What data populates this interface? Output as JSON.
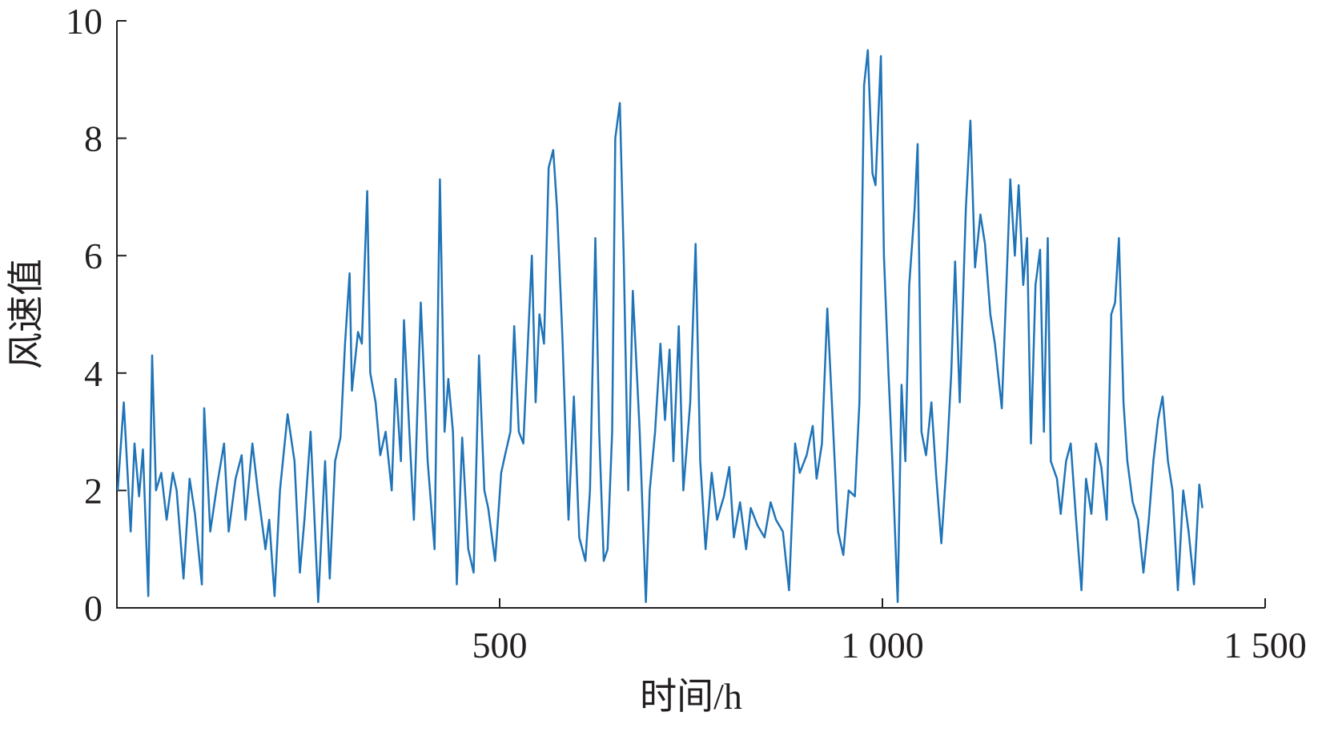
{
  "chart_data": {
    "type": "line",
    "xlabel": "时间/h",
    "ylabel": "风速值",
    "xlim": [
      0,
      1500
    ],
    "ylim": [
      0,
      10
    ],
    "xticks": [
      500,
      {
        "value": 1000,
        "label": "1 000"
      },
      {
        "value": 1500,
        "label": "1 500"
      }
    ],
    "yticks": [
      0,
      2,
      4,
      6,
      8,
      10
    ],
    "series": [
      {
        "color": "#1f74b8",
        "x": [
          1,
          9,
          18,
          23,
          29,
          34,
          41,
          46,
          51,
          58,
          65,
          73,
          78,
          87,
          95,
          102,
          111,
          114,
          122,
          131,
          140,
          146,
          155,
          163,
          168,
          177,
          184,
          194,
          199,
          206,
          213,
          223,
          232,
          239,
          245,
          253,
          263,
          272,
          278,
          285,
          292,
          298,
          304,
          307,
          315,
          320,
          327,
          331,
          338,
          344,
          351,
          359,
          364,
          371,
          375,
          382,
          388,
          397,
          406,
          415,
          422,
          428,
          433,
          439,
          444,
          451,
          459,
          466,
          473,
          480,
          485,
          494,
          502,
          507,
          514,
          519,
          525,
          531,
          542,
          547,
          552,
          558,
          564,
          570,
          575,
          582,
          590,
          597,
          604,
          612,
          618,
          625,
          630,
          636,
          641,
          647,
          651,
          657,
          662,
          668,
          674,
          683,
          691,
          696,
          703,
          710,
          716,
          722,
          727,
          734,
          740,
          749,
          756,
          762,
          769,
          777,
          784,
          793,
          800,
          806,
          814,
          822,
          828,
          837,
          846,
          854,
          861,
          870,
          878,
          886,
          892,
          901,
          909,
          914,
          921,
          928,
          934,
          942,
          949,
          956,
          964,
          970,
          976,
          981,
          987,
          991,
          998,
          1002,
          1008,
          1013,
          1020,
          1025,
          1030,
          1035,
          1042,
          1046,
          1051,
          1057,
          1064,
          1070,
          1077,
          1084,
          1090,
          1095,
          1101,
          1109,
          1115,
          1121,
          1128,
          1134,
          1141,
          1147,
          1156,
          1162,
          1167,
          1173,
          1178,
          1184,
          1189,
          1194,
          1200,
          1206,
          1211,
          1216,
          1220,
          1228,
          1233,
          1240,
          1246,
          1253,
          1260,
          1266,
          1273,
          1279,
          1286,
          1293,
          1299,
          1304,
          1309,
          1315,
          1320,
          1327,
          1334,
          1341,
          1348,
          1354,
          1360,
          1366,
          1373,
          1379,
          1386,
          1393,
          1400,
          1407,
          1414,
          1418
        ],
        "values": [
          2.0,
          3.5,
          1.3,
          2.8,
          1.9,
          2.7,
          0.2,
          4.3,
          2.0,
          2.3,
          1.5,
          2.3,
          2.0,
          0.5,
          2.2,
          1.6,
          0.4,
          3.4,
          1.3,
          2.1,
          2.8,
          1.3,
          2.2,
          2.6,
          1.5,
          2.8,
          2.0,
          1.0,
          1.5,
          0.2,
          2.0,
          3.3,
          2.5,
          0.6,
          1.5,
          3.0,
          0.1,
          2.5,
          0.5,
          2.5,
          2.9,
          4.5,
          5.7,
          3.7,
          4.7,
          4.5,
          7.1,
          4.0,
          3.5,
          2.6,
          3.0,
          2.0,
          3.9,
          2.5,
          4.9,
          3.0,
          1.5,
          5.2,
          2.5,
          1.0,
          7.3,
          3.0,
          3.9,
          3.0,
          0.4,
          2.9,
          1.0,
          0.6,
          4.3,
          2.0,
          1.7,
          0.8,
          2.3,
          2.6,
          3.0,
          4.8,
          3.0,
          2.8,
          6.0,
          3.5,
          5.0,
          4.5,
          7.5,
          7.8,
          6.8,
          4.6,
          1.5,
          3.6,
          1.2,
          0.8,
          2.0,
          6.3,
          3.0,
          0.8,
          1.0,
          3.0,
          8.0,
          8.6,
          6.0,
          2.0,
          5.4,
          3.0,
          0.1,
          2.0,
          3.0,
          4.5,
          3.2,
          4.4,
          2.5,
          4.8,
          2.0,
          3.5,
          6.2,
          2.5,
          1.0,
          2.3,
          1.5,
          1.9,
          2.4,
          1.2,
          1.8,
          1.0,
          1.7,
          1.4,
          1.2,
          1.8,
          1.5,
          1.3,
          0.3,
          2.8,
          2.3,
          2.6,
          3.1,
          2.2,
          2.8,
          5.1,
          3.5,
          1.3,
          0.9,
          2.0,
          1.9,
          3.5,
          8.9,
          9.5,
          7.4,
          7.2,
          9.4,
          6.0,
          4.0,
          2.5,
          0.1,
          3.8,
          2.5,
          5.5,
          6.8,
          7.9,
          3.0,
          2.6,
          3.5,
          2.3,
          1.1,
          2.5,
          4.0,
          5.9,
          3.5,
          6.8,
          8.3,
          5.8,
          6.7,
          6.2,
          5.0,
          4.5,
          3.4,
          5.5,
          7.3,
          6.0,
          7.2,
          5.5,
          6.3,
          2.8,
          5.5,
          6.1,
          3.0,
          6.3,
          2.5,
          2.2,
          1.6,
          2.5,
          2.8,
          1.5,
          0.3,
          2.2,
          1.6,
          2.8,
          2.4,
          1.5,
          5.0,
          5.2,
          6.3,
          3.5,
          2.5,
          1.8,
          1.5,
          0.6,
          1.5,
          2.5,
          3.2,
          3.6,
          2.5,
          2.0,
          0.3,
          2.0,
          1.3,
          0.4,
          2.1,
          1.7
        ]
      }
    ]
  }
}
